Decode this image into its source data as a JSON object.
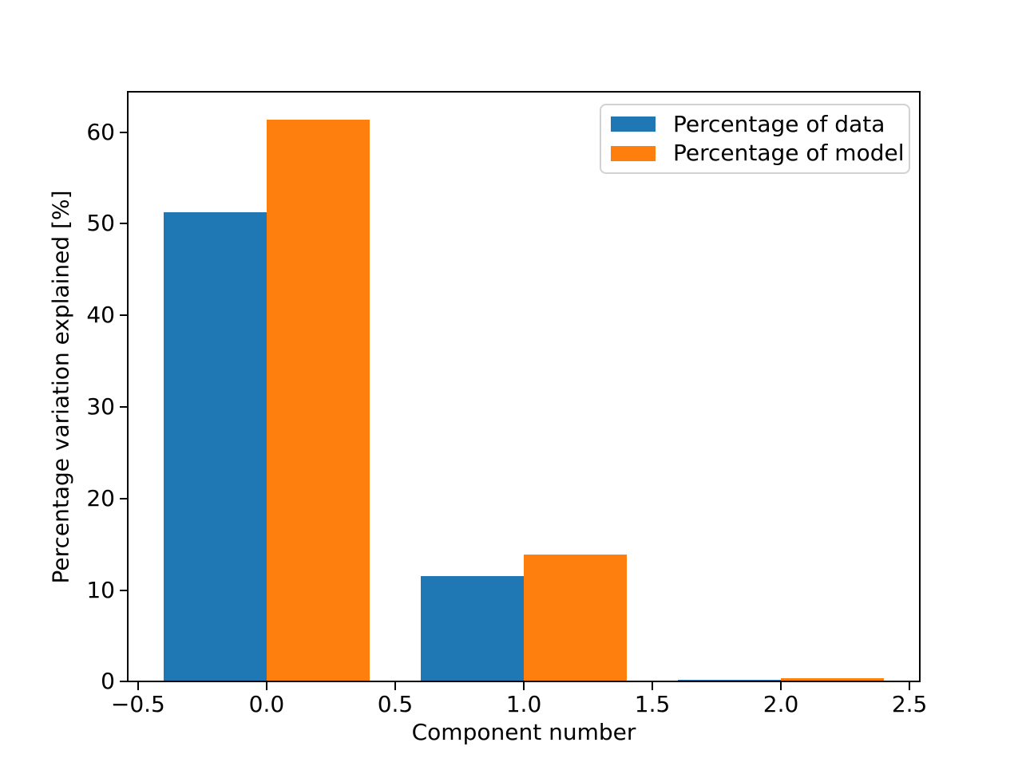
{
  "chart_data": {
    "type": "bar",
    "title": "",
    "xlabel": "Component number",
    "ylabel": "Percentage variation explained [%]",
    "categories": [
      0,
      1,
      2
    ],
    "series": [
      {
        "name": "Percentage of data",
        "color": "#1f77b4",
        "values": [
          51.3,
          11.6,
          0.3
        ]
      },
      {
        "name": "Percentage of model",
        "color": "#ff7f0e",
        "values": [
          61.4,
          13.9,
          0.45
        ]
      }
    ],
    "bar_width": 0.4,
    "series_offsets": [
      -0.4,
      0
    ],
    "xlim": [
      -0.54,
      2.54
    ],
    "ylim": [
      0,
      64.4
    ],
    "xticks": {
      "values": [
        -0.5,
        0,
        0.5,
        1,
        1.5,
        2,
        2.5
      ],
      "labels": [
        "−0.5",
        "0.0",
        "0.5",
        "1.0",
        "1.5",
        "2.0",
        "2.5"
      ]
    },
    "yticks": {
      "values": [
        0,
        10,
        20,
        30,
        40,
        50,
        60
      ],
      "labels": [
        "0",
        "10",
        "20",
        "30",
        "40",
        "50",
        "60"
      ]
    },
    "grid": false,
    "legend_position": "upper right",
    "axis_color": "#000000",
    "legend_border_color": "#d2d2d2"
  }
}
